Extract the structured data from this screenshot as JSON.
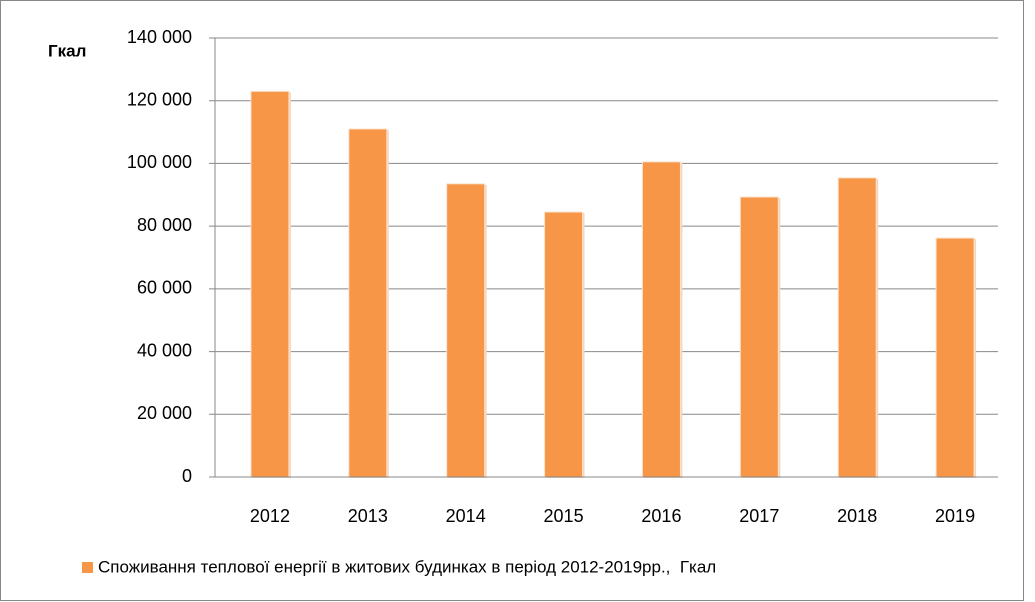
{
  "chart_data": {
    "type": "bar",
    "y_axis_label": "Гкал",
    "categories": [
      "2012",
      "2013",
      "2014",
      "2015",
      "2016",
      "2017",
      "2018",
      "2019"
    ],
    "series": [
      {
        "name": "Споживання теплової енергії в житових будинках в період 2012-2019рр.,  Гкал",
        "color": "#f79646",
        "values": [
          123000,
          111000,
          93500,
          84500,
          100500,
          89300,
          95400,
          76200
        ]
      }
    ],
    "ylim": [
      0,
      140000
    ],
    "yticks": [
      {
        "value": 0,
        "label": "0"
      },
      {
        "value": 20000,
        "label": "20 000"
      },
      {
        "value": 40000,
        "label": "40 000"
      },
      {
        "value": 60000,
        "label": "60 000"
      },
      {
        "value": 80000,
        "label": "80 000"
      },
      {
        "value": 100000,
        "label": "100 000"
      },
      {
        "value": 120000,
        "label": "120 000"
      },
      {
        "value": 140000,
        "label": "140 000"
      }
    ],
    "grid": true,
    "legend": "bottom"
  }
}
